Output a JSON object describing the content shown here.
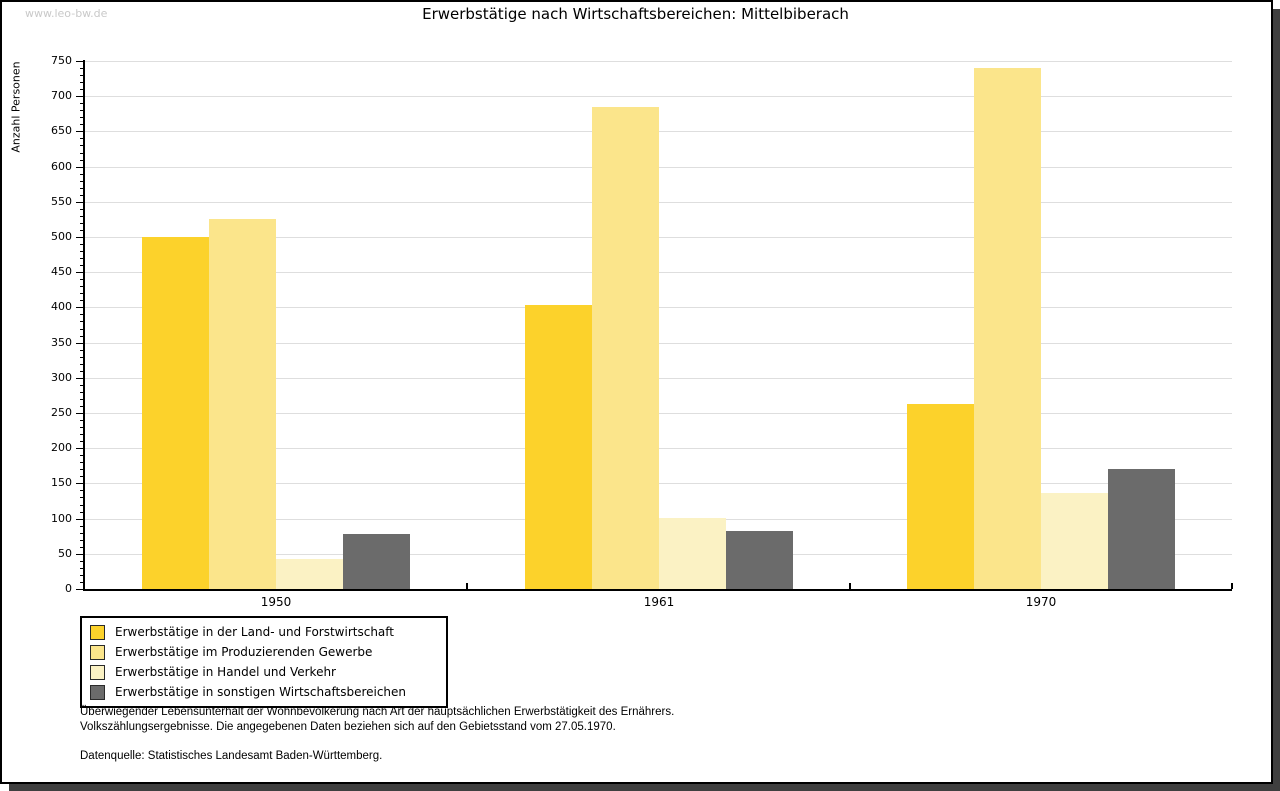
{
  "watermark": "www.leo-bw.de",
  "title": "Erwerbstätige nach Wirtschaftsbereichen: Mittelbiberach",
  "chart_data": {
    "type": "bar",
    "title": "Erwerbstätige nach Wirtschaftsbereichen: Mittelbiberach",
    "xlabel": "",
    "ylabel": "Anzahl Personen",
    "categories": [
      "1950",
      "1961",
      "1970"
    ],
    "series": [
      {
        "name": "Erwerbstätige in der Land- und Forstwirtschaft",
        "color": "#fcd22b",
        "values": [
          500,
          403,
          263
        ]
      },
      {
        "name": "Erwerbstätige im Produzierenden Gewerbe",
        "color": "#fbe58b",
        "values": [
          525,
          685,
          740
        ]
      },
      {
        "name": "Erwerbstätige in Handel und Verkehr",
        "color": "#fbf2c4",
        "values": [
          42,
          101,
          136
        ]
      },
      {
        "name": "Erwerbstätige in sonstigen Wirtschaftsbereichen",
        "color": "#6b6b6b",
        "values": [
          78,
          82,
          171
        ]
      }
    ],
    "ylim": [
      0,
      750
    ],
    "yticks": [
      0,
      50,
      100,
      150,
      200,
      250,
      300,
      350,
      400,
      450,
      500,
      550,
      600,
      650,
      700,
      750
    ],
    "ytick_minor_step": 10,
    "grid": true,
    "legend_position": "bottom-left",
    "colors": {
      "gridline": "#dedede",
      "axis": "#000000",
      "shadow": "#3f3f3f",
      "watermark_text": "#c9c9c9"
    }
  },
  "footnotes": {
    "line1": "Überwiegender Lebensunterhalt der Wohnbevölkerung nach Art der hauptsächlichen Erwerbstätigkeit des Ernährers.",
    "line2": "Volkszählungsergebnisse. Die angegebenen Daten beziehen sich auf den Gebietsstand vom 27.05.1970.",
    "source": "Datenquelle: Statistisches Landesamt Baden-Württemberg."
  }
}
